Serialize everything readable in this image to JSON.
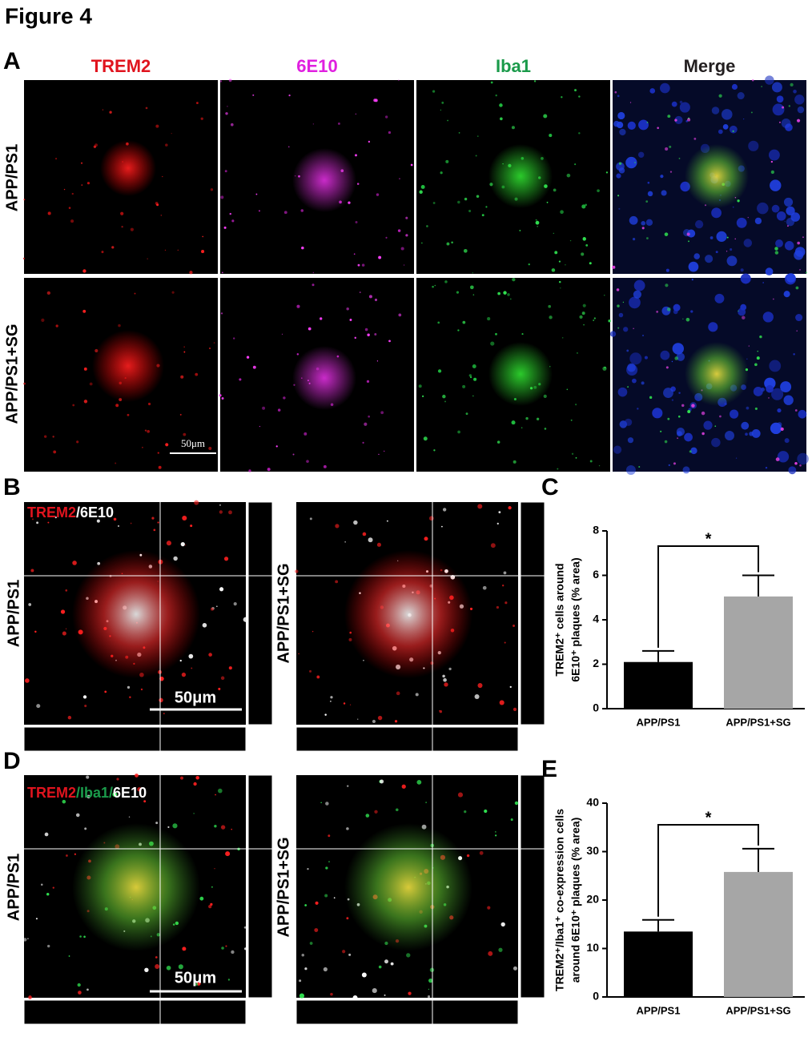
{
  "header": {
    "title": "Figure 4"
  },
  "panel_a": {
    "label": "A",
    "columns": [
      "TREM2",
      "6E10",
      "Iba1",
      "Merge"
    ],
    "rows": [
      "APP/PS1",
      "APP/PS1+SG"
    ],
    "scale_bar": "50μm"
  },
  "panel_b": {
    "label": "B",
    "overlay": [
      "TREM2",
      "/6E10"
    ],
    "rows": [
      "APP/PS1",
      "APP/PS1+SG"
    ],
    "scale_bar": "50μm"
  },
  "panel_d": {
    "label": "D",
    "overlay": [
      "TREM2",
      "/Iba1/",
      "6E10"
    ],
    "rows": [
      "APP/PS1",
      "APP/PS1+SG"
    ],
    "scale_bar": "50μm"
  },
  "chart_data": [
    {
      "type": "bar",
      "panel_label": "C",
      "ylabel": [
        "TREM2⁺ cells around",
        "6E10⁺ plaques (% area)"
      ],
      "categories": [
        "APP/PS1",
        "APP/PS1+SG"
      ],
      "values": [
        2.1,
        5.05
      ],
      "errors": [
        0.5,
        0.95
      ],
      "colors": [
        "#000000",
        "#a6a6a6"
      ],
      "ylim": [
        0,
        8
      ],
      "yticks": [
        0,
        2,
        4,
        6,
        8
      ],
      "annotation": "*"
    },
    {
      "type": "bar",
      "panel_label": "E",
      "ylabel": [
        "TREM2⁺/Iba1⁺ co-expression cells",
        "around 6E10⁺ plaques (% area)"
      ],
      "categories": [
        "APP/PS1",
        "APP/PS1+SG"
      ],
      "values": [
        13.5,
        25.8
      ],
      "errors": [
        2.4,
        4.8
      ],
      "colors": [
        "#000000",
        "#a6a6a6"
      ],
      "ylim": [
        0,
        40
      ],
      "yticks": [
        0,
        10,
        20,
        30,
        40
      ],
      "annotation": "*"
    }
  ]
}
